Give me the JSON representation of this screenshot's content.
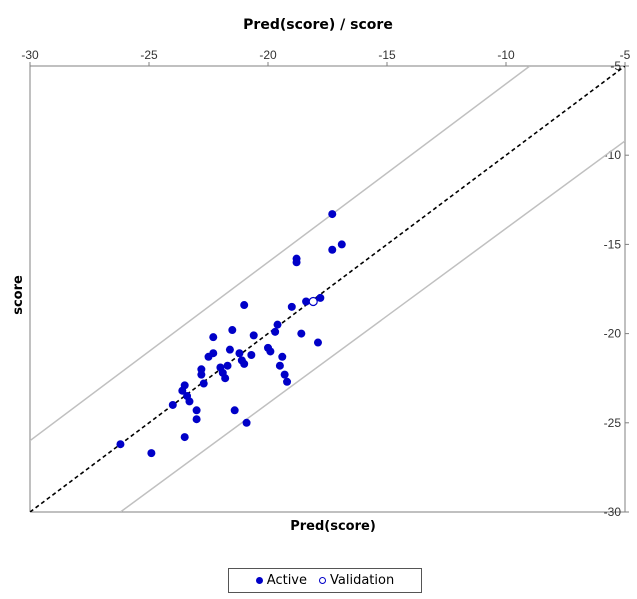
{
  "chart_data": {
    "type": "scatter",
    "title": "Pred(score) / score",
    "xlabel": "Pred(score)",
    "ylabel": "score",
    "xlim": [
      -30,
      -5
    ],
    "ylim": [
      -30,
      -5
    ],
    "x_ticks": [
      "-30",
      "-25",
      "-20",
      "-15",
      "-10",
      "-5"
    ],
    "y_ticks": [
      "-5",
      "-10",
      "-15",
      "-20",
      "-25",
      "-30"
    ],
    "x_axis_position": "top",
    "y_axis_position": "right",
    "reference_lines": [
      {
        "style": "dashed",
        "color": "#000000",
        "points": [
          [
            -30,
            -30
          ],
          [
            -5,
            -5
          ]
        ]
      },
      {
        "style": "solid",
        "color": "#c0c0c0",
        "points": [
          [
            -30,
            -26
          ],
          [
            -9,
            -5
          ]
        ]
      },
      {
        "style": "solid",
        "color": "#c0c0c0",
        "points": [
          [
            -26.2,
            -30
          ],
          [
            -5,
            -9.2
          ]
        ]
      }
    ],
    "legend_position": "bottom",
    "series": [
      {
        "name": "Active",
        "marker": "filled-circle",
        "color": "#0000c8",
        "points": [
          [
            -26.2,
            -26.2
          ],
          [
            -24.9,
            -26.7
          ],
          [
            -24.0,
            -24.0
          ],
          [
            -23.6,
            -23.2
          ],
          [
            -23.5,
            -22.9
          ],
          [
            -23.4,
            -23.5
          ],
          [
            -23.3,
            -23.8
          ],
          [
            -23.5,
            -25.8
          ],
          [
            -23.0,
            -24.3
          ],
          [
            -23.0,
            -24.8
          ],
          [
            -22.8,
            -22.0
          ],
          [
            -22.8,
            -22.3
          ],
          [
            -22.7,
            -22.8
          ],
          [
            -22.5,
            -21.3
          ],
          [
            -22.3,
            -21.1
          ],
          [
            -22.3,
            -20.2
          ],
          [
            -22.0,
            -21.9
          ],
          [
            -21.9,
            -22.2
          ],
          [
            -21.8,
            -22.5
          ],
          [
            -21.7,
            -21.8
          ],
          [
            -21.6,
            -20.9
          ],
          [
            -21.5,
            -19.8
          ],
          [
            -21.4,
            -24.3
          ],
          [
            -21.2,
            -21.1
          ],
          [
            -21.1,
            -21.5
          ],
          [
            -21.0,
            -21.7
          ],
          [
            -21.0,
            -18.4
          ],
          [
            -20.9,
            -25.0
          ],
          [
            -20.7,
            -21.2
          ],
          [
            -20.6,
            -20.1
          ],
          [
            -20.0,
            -20.8
          ],
          [
            -19.9,
            -21.0
          ],
          [
            -19.7,
            -19.9
          ],
          [
            -19.6,
            -19.5
          ],
          [
            -19.5,
            -21.8
          ],
          [
            -19.4,
            -21.3
          ],
          [
            -19.3,
            -22.3
          ],
          [
            -19.2,
            -22.7
          ],
          [
            -19.0,
            -18.5
          ],
          [
            -18.8,
            -15.8
          ],
          [
            -18.8,
            -16.0
          ],
          [
            -18.6,
            -20.0
          ],
          [
            -18.4,
            -18.2
          ],
          [
            -17.9,
            -20.5
          ],
          [
            -17.8,
            -18.0
          ],
          [
            -17.3,
            -13.3
          ],
          [
            -17.3,
            -15.3
          ],
          [
            -16.9,
            -15.0
          ]
        ]
      },
      {
        "name": "Validation",
        "marker": "open-circle",
        "color": "#0000c8",
        "points": [
          [
            -18.1,
            -18.2
          ]
        ]
      }
    ]
  }
}
